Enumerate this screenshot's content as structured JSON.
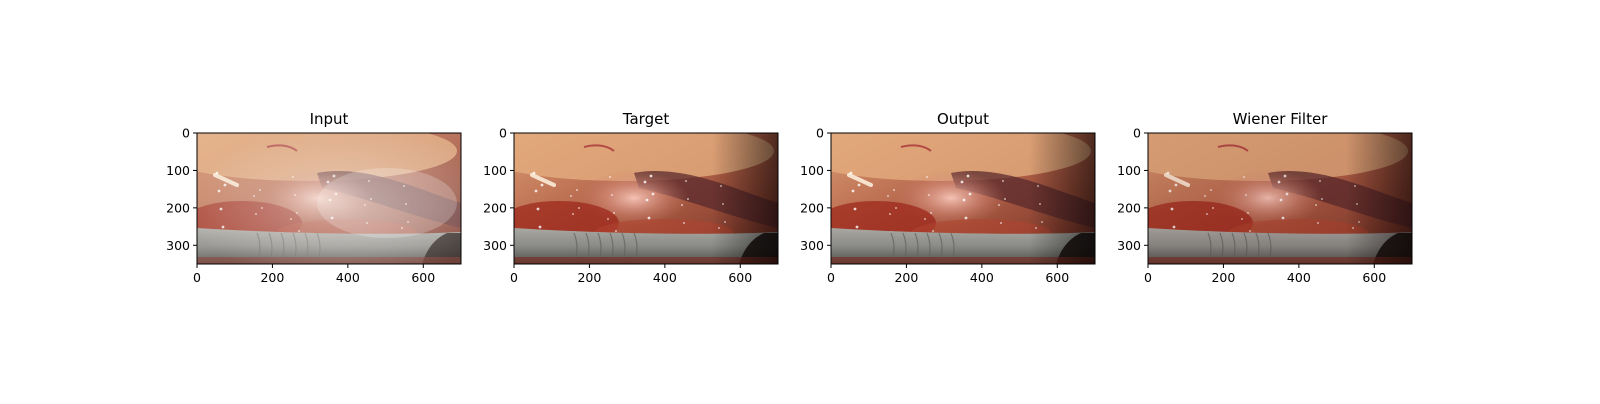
{
  "figure": {
    "panels": [
      {
        "title": "Input",
        "variant": "hazy",
        "xticks": [
          "0",
          "200",
          "400",
          "600"
        ],
        "yticks": [
          "0",
          "100",
          "200",
          "300"
        ]
      },
      {
        "title": "Target",
        "variant": "clear",
        "xticks": [
          "0",
          "200",
          "400",
          "600"
        ],
        "yticks": [
          "0",
          "100",
          "200",
          "300"
        ]
      },
      {
        "title": "Output",
        "variant": "clear",
        "xticks": [
          "0",
          "200",
          "400",
          "600"
        ],
        "yticks": [
          "0",
          "100",
          "200",
          "300"
        ]
      },
      {
        "title": "Wiener Filter",
        "variant": "sharp",
        "xticks": [
          "0",
          "200",
          "400",
          "600"
        ],
        "yticks": [
          "0",
          "100",
          "200",
          "300"
        ]
      }
    ],
    "x_range": [
      0,
      700
    ],
    "y_range": [
      0,
      350
    ],
    "x_tick_values": [
      0,
      200,
      400,
      600
    ],
    "y_tick_values": [
      0,
      100,
      200,
      300
    ]
  },
  "colors": {
    "tissue_light": "#d89a72",
    "tissue_mid": "#b5644a",
    "tissue_dark": "#6e2a20",
    "blood": "#9b2418",
    "instrument": "#8a8a86",
    "instrument_dark": "#4e4e4c",
    "haze": "#f2ece8"
  },
  "image_description_icon": "surgical-scene-image"
}
